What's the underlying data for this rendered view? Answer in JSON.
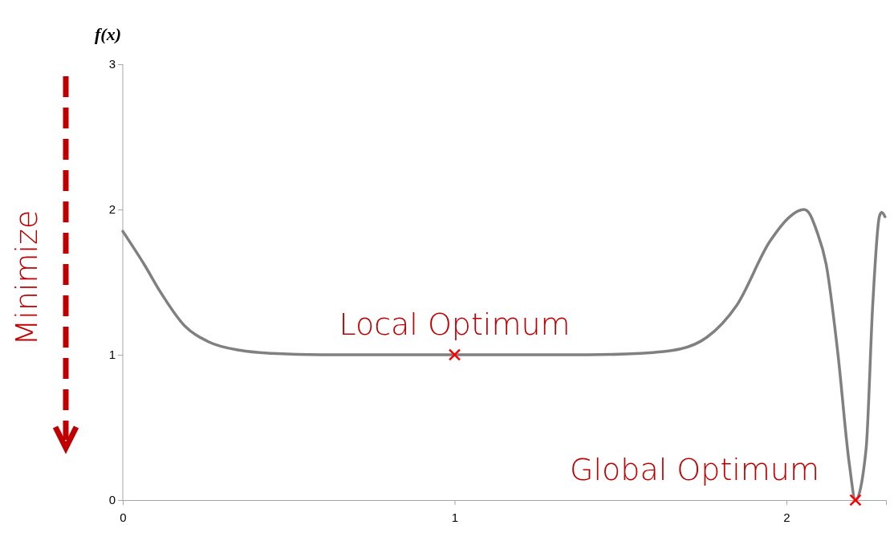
{
  "chart_data": {
    "type": "line",
    "ylabel": "f(x)",
    "xlim": [
      0,
      2.3
    ],
    "ylim": [
      0,
      3
    ],
    "xticks": [
      0,
      1,
      2
    ],
    "yticks": [
      0,
      1,
      2,
      3
    ],
    "grid": false,
    "series": [
      {
        "color": "#808080",
        "marker": "none",
        "x": [
          0,
          0.065,
          0.114,
          0.186,
          0.258,
          0.355,
          0.45,
          0.6,
          0.8,
          1,
          1.2,
          1.4,
          1.56,
          1.68,
          1.76,
          1.85,
          1.95,
          2.01,
          2.035,
          2.053,
          2.07,
          2.09,
          2.12,
          2.155,
          2.19,
          2.208,
          2.24,
          2.26,
          2.28,
          2.287,
          2.297
        ],
        "values": [
          1.85,
          1.62,
          1.43,
          1.2,
          1.09,
          1.03,
          1.01,
          1,
          1,
          1,
          1,
          1,
          1.01,
          1.04,
          1.12,
          1.34,
          1.78,
          1.95,
          1.99,
          2,
          1.97,
          1.86,
          1.62,
          1.01,
          0.24,
          0,
          0.35,
          1.34,
          1.95,
          1.98,
          1.95
        ]
      },
      {
        "type": "scatter",
        "color": "#ff0000",
        "marker": "cross",
        "x": [
          1,
          2.208
        ],
        "values": [
          1,
          0
        ]
      }
    ],
    "annotations": [
      {
        "text": "Local Optimum",
        "x": 1,
        "y": 1
      },
      {
        "text": "Global Optimum",
        "x": 2.208,
        "y": 0
      },
      "Minimize"
    ]
  }
}
